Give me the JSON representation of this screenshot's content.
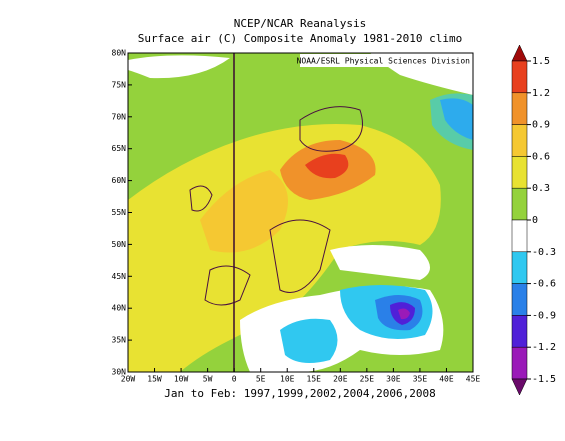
{
  "title": "NCEP/NCAR Reanalysis",
  "subtitle": "Surface air (C) Composite Anomaly 1981-2010 climo",
  "credit": "NOAA/ESRL Physical Sciences Division",
  "footer": "Jan to Feb: 1997,1999,2002,2004,2006,2008",
  "lon_labels": [
    "20W",
    "15W",
    "10W",
    "5W",
    "0",
    "5E",
    "10E",
    "15E",
    "20E",
    "25E",
    "30E",
    "35E",
    "40E",
    "45E"
  ],
  "lat_labels": [
    "80N",
    "75N",
    "70N",
    "65N",
    "60N",
    "55N",
    "50N",
    "45N",
    "40N",
    "35N",
    "30N"
  ],
  "colorbar": {
    "ticks": [
      1.5,
      1.2,
      0.9,
      0.6,
      0.3,
      0,
      -0.3,
      -0.6,
      -0.9,
      -1.2,
      -1.5
    ],
    "colors": [
      "#a00a0a",
      "#e8401e",
      "#f0922a",
      "#f5c832",
      "#e8e232",
      "#94d23c",
      "#ffffff",
      "#30c8f0",
      "#2a80e8",
      "#5020d8",
      "#9a1ab8",
      "#6a0a6a"
    ]
  }
}
